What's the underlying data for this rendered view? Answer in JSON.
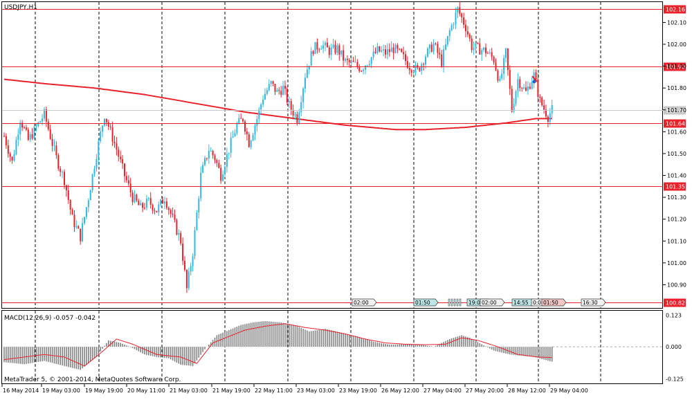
{
  "window": {
    "symbol_title": "USDJPY,H1",
    "copyright": "MetaTrader 5, © 2001-2014, MetaQuotes Software Corp."
  },
  "price_axis": {
    "ticks": [
      "102.10",
      "102.00",
      "101.90",
      "101.80",
      "101.70",
      "101.60",
      "101.50",
      "101.40",
      "101.30",
      "101.20",
      "101.10",
      "101.00",
      "100.90"
    ]
  },
  "level_lines": [
    {
      "label": "102.16",
      "price": 102.16
    },
    {
      "label": "101.90",
      "price": 101.9
    },
    {
      "label": "101.64",
      "price": 101.64
    },
    {
      "label": "101.35",
      "price": 101.35
    },
    {
      "label": "100.82",
      "price": 100.82
    }
  ],
  "current_price": {
    "label": "101.70",
    "price": 101.7
  },
  "event_flags": [
    "02:00",
    "01:50",
    "19:00",
    "02:00",
    "14:55",
    "0:00",
    "01:50",
    "16:30"
  ],
  "macd": {
    "title": "MACD(12,26,9) -0.057 -0.042",
    "ticks": [
      "0.123",
      "0.000",
      "-0.125"
    ]
  },
  "time_axis": {
    "labels": [
      "16 May 2014",
      "19 May 03:00",
      "19 May 19:00",
      "20 May 11:00",
      "21 May 03:00",
      "21 May 19:00",
      "22 May 11:00",
      "23 May 03:00",
      "23 May 19:00",
      "26 May 12:00",
      "27 May 04:00",
      "27 May 20:00",
      "28 May 12:00",
      "29 May 04:00"
    ]
  },
  "colors": {
    "bull": "#2fb8e6",
    "bear": "#e8212b",
    "level": "#e8212b",
    "ma": "#e8212b",
    "current": "#c8c8c8",
    "histogram": "#808080"
  },
  "chart_data": {
    "type": "candlestick",
    "symbol": "USDJPY",
    "timeframe": "H1",
    "price_range": [
      100.8,
      102.19
    ],
    "keypoints": [
      [
        0,
        101.58
      ],
      [
        4,
        101.46
      ],
      [
        8,
        101.66
      ],
      [
        12,
        101.56
      ],
      [
        16,
        101.62
      ],
      [
        20,
        101.68
      ],
      [
        26,
        101.48
      ],
      [
        30,
        101.38
      ],
      [
        34,
        101.2
      ],
      [
        38,
        101.12
      ],
      [
        42,
        101.3
      ],
      [
        46,
        101.5
      ],
      [
        50,
        101.68
      ],
      [
        53,
        101.6
      ],
      [
        56,
        101.52
      ],
      [
        60,
        101.4
      ],
      [
        64,
        101.3
      ],
      [
        68,
        101.25
      ],
      [
        72,
        101.28
      ],
      [
        76,
        101.24
      ],
      [
        80,
        101.3
      ],
      [
        84,
        101.2
      ],
      [
        88,
        101.1
      ],
      [
        91,
        100.88
      ],
      [
        94,
        101.05
      ],
      [
        98,
        101.4
      ],
      [
        102,
        101.52
      ],
      [
        105,
        101.48
      ],
      [
        108,
        101.4
      ],
      [
        112,
        101.52
      ],
      [
        116,
        101.63
      ],
      [
        119,
        101.66
      ],
      [
        122,
        101.55
      ],
      [
        126,
        101.66
      ],
      [
        129,
        101.76
      ],
      [
        133,
        101.82
      ],
      [
        136,
        101.78
      ],
      [
        139,
        101.8
      ],
      [
        142,
        101.72
      ],
      [
        146,
        101.66
      ],
      [
        150,
        101.86
      ],
      [
        154,
        101.98
      ],
      [
        158,
        102.0
      ],
      [
        162,
        101.97
      ],
      [
        166,
        101.98
      ],
      [
        170,
        101.92
      ],
      [
        174,
        101.91
      ],
      [
        178,
        101.89
      ],
      [
        182,
        101.93
      ],
      [
        186,
        101.97
      ],
      [
        190,
        101.96
      ],
      [
        194,
        101.98
      ],
      [
        198,
        101.95
      ],
      [
        202,
        101.9
      ],
      [
        206,
        101.88
      ],
      [
        210,
        101.95
      ],
      [
        214,
        102.0
      ],
      [
        218,
        101.92
      ],
      [
        222,
        102.06
      ],
      [
        226,
        102.16
      ],
      [
        230,
        102.08
      ],
      [
        233,
        101.99
      ],
      [
        236,
        101.98
      ],
      [
        240,
        101.97
      ],
      [
        244,
        101.93
      ],
      [
        247,
        101.82
      ],
      [
        250,
        101.96
      ],
      [
        253,
        101.7
      ],
      [
        256,
        101.84
      ],
      [
        260,
        101.78
      ],
      [
        264,
        101.86
      ],
      [
        267,
        101.74
      ],
      [
        271,
        101.67
      ],
      [
        273,
        101.7
      ]
    ],
    "moving_average": [
      [
        0,
        101.84
      ],
      [
        20,
        101.82
      ],
      [
        45,
        101.8
      ],
      [
        70,
        101.77
      ],
      [
        95,
        101.73
      ],
      [
        120,
        101.69
      ],
      [
        145,
        101.66
      ],
      [
        170,
        101.63
      ],
      [
        195,
        101.61
      ],
      [
        210,
        101.61
      ],
      [
        230,
        101.62
      ],
      [
        250,
        101.64
      ],
      [
        265,
        101.66
      ],
      [
        273,
        101.66
      ]
    ],
    "macd": {
      "range": [
        -0.14,
        0.135
      ],
      "keypoints": [
        [
          0,
          -0.06
        ],
        [
          10,
          -0.068
        ],
        [
          20,
          -0.055
        ],
        [
          30,
          -0.075
        ],
        [
          38,
          -0.09
        ],
        [
          46,
          -0.04
        ],
        [
          52,
          0.025
        ],
        [
          58,
          0.015
        ],
        [
          64,
          -0.005
        ],
        [
          70,
          -0.03
        ],
        [
          76,
          -0.04
        ],
        [
          82,
          -0.045
        ],
        [
          88,
          -0.07
        ],
        [
          94,
          -0.075
        ],
        [
          100,
          -0.01
        ],
        [
          106,
          0.045
        ],
        [
          112,
          0.065
        ],
        [
          118,
          0.085
        ],
        [
          124,
          0.095
        ],
        [
          130,
          0.1
        ],
        [
          138,
          0.095
        ],
        [
          146,
          0.08
        ],
        [
          152,
          0.06
        ],
        [
          160,
          0.07
        ],
        [
          168,
          0.055
        ],
        [
          176,
          0.04
        ],
        [
          184,
          0.02
        ],
        [
          192,
          0.008
        ],
        [
          200,
          0.01
        ],
        [
          208,
          0.008
        ],
        [
          214,
          0.0
        ],
        [
          222,
          0.03
        ],
        [
          228,
          0.045
        ],
        [
          232,
          0.035
        ],
        [
          238,
          0.01
        ],
        [
          244,
          -0.015
        ],
        [
          252,
          -0.03
        ],
        [
          258,
          -0.035
        ],
        [
          264,
          -0.04
        ],
        [
          273,
          -0.058
        ]
      ],
      "signal": [
        [
          0,
          -0.05
        ],
        [
          20,
          -0.03
        ],
        [
          30,
          -0.04
        ],
        [
          40,
          -0.075
        ],
        [
          48,
          -0.025
        ],
        [
          56,
          0.03
        ],
        [
          64,
          0.01
        ],
        [
          76,
          -0.03
        ],
        [
          88,
          -0.04
        ],
        [
          96,
          -0.065
        ],
        [
          104,
          0.015
        ],
        [
          112,
          0.04
        ],
        [
          120,
          0.065
        ],
        [
          130,
          0.08
        ],
        [
          140,
          0.09
        ],
        [
          150,
          0.075
        ],
        [
          160,
          0.065
        ],
        [
          170,
          0.05
        ],
        [
          180,
          0.03
        ],
        [
          190,
          0.015
        ],
        [
          200,
          0.01
        ],
        [
          210,
          0.008
        ],
        [
          220,
          0.01
        ],
        [
          228,
          0.035
        ],
        [
          236,
          0.025
        ],
        [
          246,
          0.0
        ],
        [
          256,
          -0.03
        ],
        [
          266,
          -0.04
        ],
        [
          273,
          -0.042
        ]
      ]
    }
  }
}
